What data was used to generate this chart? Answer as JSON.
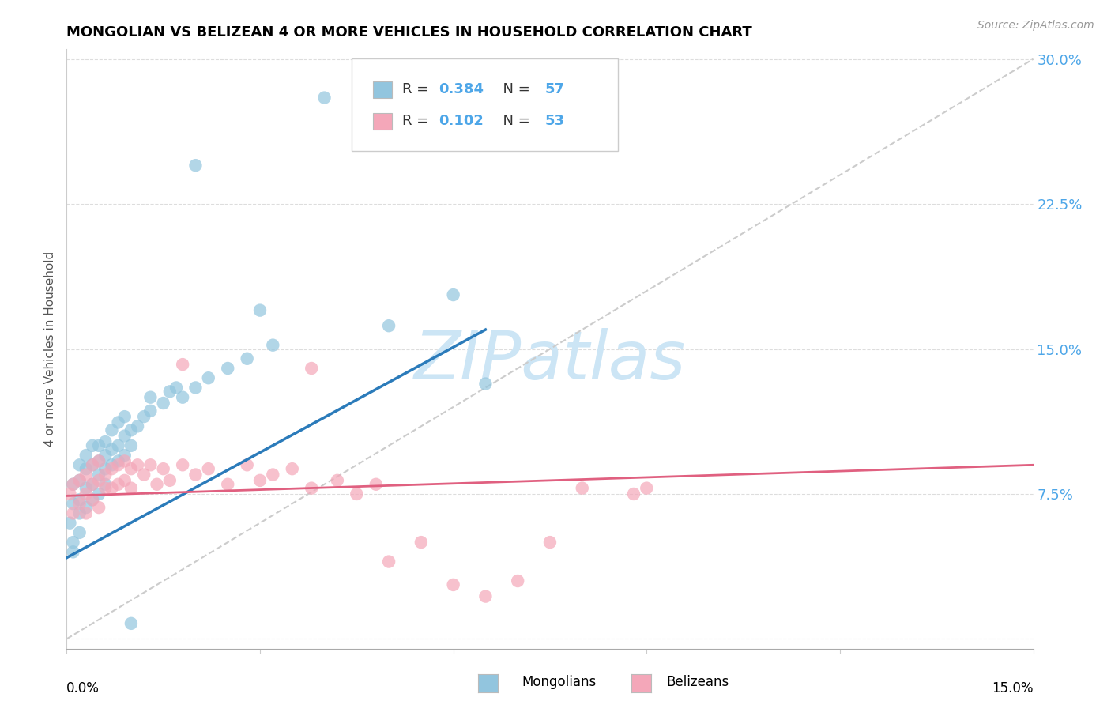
{
  "title": "MONGOLIAN VS BELIZEAN 4 OR MORE VEHICLES IN HOUSEHOLD CORRELATION CHART",
  "source": "Source: ZipAtlas.com",
  "ylabel": "4 or more Vehicles in Household",
  "xlim": [
    0.0,
    0.15
  ],
  "ylim": [
    -0.005,
    0.305
  ],
  "mongolian_R": 0.384,
  "mongolian_N": 57,
  "belizean_R": 0.102,
  "belizean_N": 53,
  "mongolian_color": "#92c5de",
  "belizean_color": "#f4a7b9",
  "mongolian_line_color": "#2b7bba",
  "belizean_line_color": "#e06080",
  "ref_line_color": "#cccccc",
  "grid_color": "#dddddd",
  "right_tick_color": "#4da6e8",
  "watermark_color": "#cce5f5",
  "mongolian_x": [
    0.0005,
    0.001,
    0.001,
    0.001,
    0.001,
    0.002,
    0.002,
    0.002,
    0.002,
    0.002,
    0.003,
    0.003,
    0.003,
    0.003,
    0.004,
    0.004,
    0.004,
    0.004,
    0.005,
    0.005,
    0.005,
    0.005,
    0.006,
    0.006,
    0.006,
    0.006,
    0.007,
    0.007,
    0.007,
    0.008,
    0.008,
    0.008,
    0.009,
    0.009,
    0.009,
    0.01,
    0.01,
    0.011,
    0.012,
    0.013,
    0.013,
    0.015,
    0.016,
    0.017,
    0.018,
    0.02,
    0.022,
    0.025,
    0.028,
    0.032,
    0.01,
    0.02,
    0.03,
    0.04,
    0.05,
    0.06,
    0.065
  ],
  "mongolian_y": [
    0.06,
    0.05,
    0.07,
    0.08,
    0.045,
    0.072,
    0.082,
    0.09,
    0.065,
    0.055,
    0.078,
    0.088,
    0.095,
    0.068,
    0.08,
    0.09,
    0.1,
    0.072,
    0.085,
    0.092,
    0.1,
    0.075,
    0.088,
    0.095,
    0.102,
    0.08,
    0.09,
    0.098,
    0.108,
    0.092,
    0.1,
    0.112,
    0.095,
    0.105,
    0.115,
    0.1,
    0.108,
    0.11,
    0.115,
    0.118,
    0.125,
    0.122,
    0.128,
    0.13,
    0.125,
    0.13,
    0.135,
    0.14,
    0.145,
    0.152,
    0.008,
    0.245,
    0.17,
    0.28,
    0.162,
    0.178,
    0.132
  ],
  "belizean_x": [
    0.0005,
    0.001,
    0.001,
    0.002,
    0.002,
    0.003,
    0.003,
    0.003,
    0.004,
    0.004,
    0.004,
    0.005,
    0.005,
    0.005,
    0.006,
    0.006,
    0.007,
    0.007,
    0.008,
    0.008,
    0.009,
    0.009,
    0.01,
    0.01,
    0.011,
    0.012,
    0.013,
    0.014,
    0.015,
    0.016,
    0.018,
    0.02,
    0.022,
    0.025,
    0.028,
    0.03,
    0.032,
    0.035,
    0.038,
    0.042,
    0.045,
    0.048,
    0.05,
    0.055,
    0.06,
    0.065,
    0.07,
    0.075,
    0.08,
    0.09,
    0.018,
    0.038,
    0.088
  ],
  "belizean_y": [
    0.075,
    0.08,
    0.065,
    0.082,
    0.07,
    0.085,
    0.075,
    0.065,
    0.08,
    0.09,
    0.072,
    0.082,
    0.092,
    0.068,
    0.085,
    0.078,
    0.088,
    0.078,
    0.09,
    0.08,
    0.092,
    0.082,
    0.088,
    0.078,
    0.09,
    0.085,
    0.09,
    0.08,
    0.088,
    0.082,
    0.09,
    0.085,
    0.088,
    0.08,
    0.09,
    0.082,
    0.085,
    0.088,
    0.078,
    0.082,
    0.075,
    0.08,
    0.04,
    0.05,
    0.028,
    0.022,
    0.03,
    0.05,
    0.078,
    0.078,
    0.142,
    0.14,
    0.075
  ],
  "mongolian_line_x": [
    0.0,
    0.065
  ],
  "mongolian_line_y": [
    0.042,
    0.16
  ],
  "belizean_line_x": [
    0.0,
    0.15
  ],
  "belizean_line_y": [
    0.074,
    0.09
  ]
}
